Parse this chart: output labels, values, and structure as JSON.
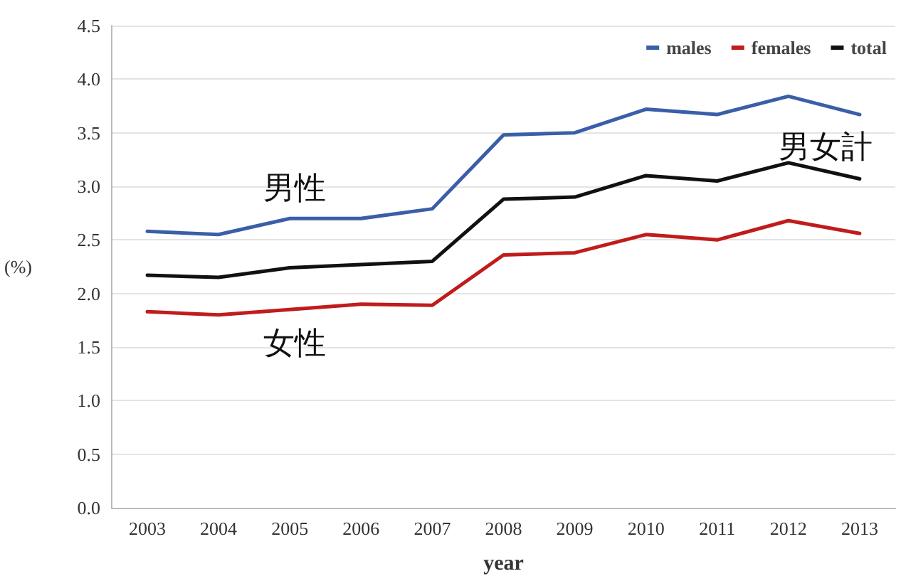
{
  "chart_data": {
    "type": "line",
    "xlabel": "year",
    "ylabel": "(%)",
    "categories": [
      "2003",
      "2004",
      "2005",
      "2006",
      "2007",
      "2008",
      "2009",
      "2010",
      "2011",
      "2012",
      "2013"
    ],
    "series": [
      {
        "name": "males",
        "color": "#3a5ea8",
        "values": [
          2.58,
          2.55,
          2.7,
          2.7,
          2.79,
          3.48,
          3.5,
          3.72,
          3.67,
          3.84,
          3.67
        ]
      },
      {
        "name": "females",
        "color": "#c01c1c",
        "values": [
          1.83,
          1.8,
          1.85,
          1.9,
          1.89,
          2.36,
          2.38,
          2.55,
          2.5,
          2.68,
          2.56
        ]
      },
      {
        "name": "total",
        "color": "#111111",
        "values": [
          2.17,
          2.15,
          2.24,
          2.27,
          2.3,
          2.88,
          2.9,
          3.1,
          3.05,
          3.22,
          3.07
        ]
      }
    ],
    "annotations": [
      "男性",
      "女性",
      "男女計"
    ],
    "ylim": [
      0,
      4.5
    ],
    "yticks": [
      {
        "value": 0,
        "label": "0.0"
      },
      0.5,
      {
        "value": 1,
        "label": "1.0"
      },
      1.5,
      {
        "value": 2,
        "label": "2.0"
      },
      2.5,
      {
        "value": 3,
        "label": "3.0"
      },
      3.5,
      {
        "value": 4,
        "label": "4.0"
      },
      4.5
    ],
    "grid": "y",
    "legend": "top right",
    "marker": "none",
    "line_style": "solid"
  }
}
